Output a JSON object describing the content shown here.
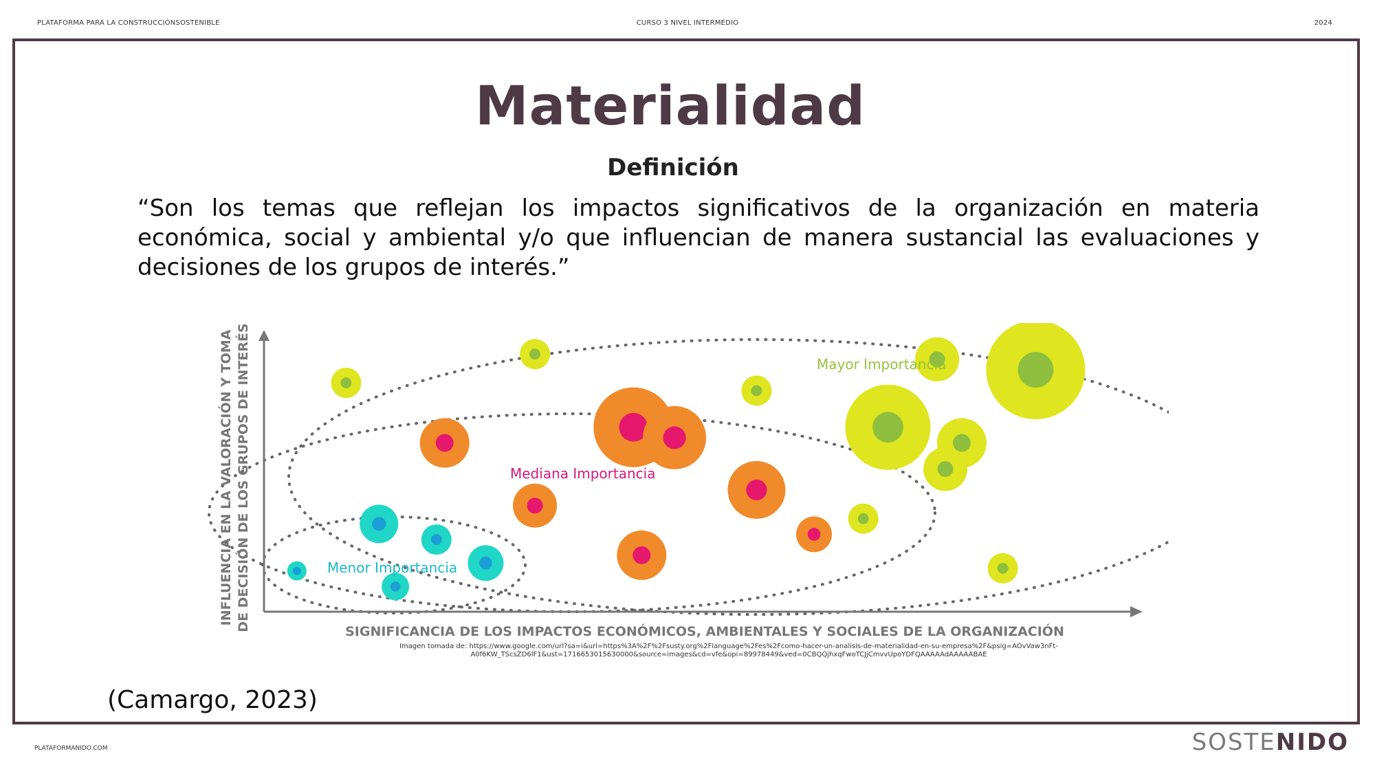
{
  "header": {
    "left": "PLATAFORMA PARA LA CONSTRUCCIÓNSOSTENIBLE",
    "center": "CURSO 3 NIVEL INTERMEDIO",
    "right": "2024"
  },
  "slide": {
    "title": "Materialidad",
    "subtitle": "Definición",
    "quote": "“Son los temas que reflejan los impactos significativos de la organización en materia económica, social y ambiental y/o que influencian de manera sustancial las evaluaciones y decisiones de los grupos de interés.”",
    "citation": "(Camargo, 2023)"
  },
  "footer": {
    "left": "PLATAFORMANIDO.COM",
    "logo_part1": "SOSTE",
    "logo_part2": "NIDO"
  },
  "colors": {
    "frame": "#4e3a45",
    "high_outer": "#dfe51e",
    "high_inner": "#8fbf3e",
    "mid_outer": "#f08a2a",
    "mid_inner": "#e6186e",
    "low_outer": "#20d6c6",
    "low_inner": "#1a9fd6",
    "high_label": "#95c23d",
    "mid_label": "#d4197a",
    "low_label": "#1bb8c8",
    "axis": "#777777"
  },
  "chart_data": {
    "type": "scatter",
    "title": "",
    "xlabel": "SIGNIFICANCIA DE LOS IMPACTOS ECONÓMICOS, AMBIENTALES Y SOCIALES DE LA ORGANIZACIÓN",
    "ylabel_line1": "INFLUENCIA EN LA VALORACIÓN Y TOMA",
    "ylabel_line2": "DE DECISIÓN DE LOS GRUPOS DE INTERÉS",
    "xlim": [
      0,
      100
    ],
    "ylim": [
      0,
      100
    ],
    "grid": false,
    "groups": [
      {
        "name": "Mayor Importancia",
        "color_key": "high",
        "points": [
          {
            "x": 9,
            "y": 85,
            "size": 1
          },
          {
            "x": 32,
            "y": 96,
            "size": 1
          },
          {
            "x": 59,
            "y": 82,
            "size": 1
          },
          {
            "x": 75,
            "y": 68,
            "size": 3
          },
          {
            "x": 81,
            "y": 94,
            "size": 1.5
          },
          {
            "x": 93,
            "y": 90,
            "size": 3.5
          },
          {
            "x": 84,
            "y": 62,
            "size": 1.7
          },
          {
            "x": 82,
            "y": 52,
            "size": 1.5
          },
          {
            "x": 72,
            "y": 33,
            "size": 1
          },
          {
            "x": 89,
            "y": 14,
            "size": 1
          }
        ]
      },
      {
        "name": "Mediana Importancia",
        "color_key": "mid",
        "points": [
          {
            "x": 21,
            "y": 62,
            "size": 1.7
          },
          {
            "x": 44,
            "y": 68,
            "size": 2.8
          },
          {
            "x": 49,
            "y": 64,
            "size": 2.2
          },
          {
            "x": 32,
            "y": 38,
            "size": 1.5
          },
          {
            "x": 59,
            "y": 44,
            "size": 2.0
          },
          {
            "x": 45,
            "y": 19,
            "size": 1.7
          },
          {
            "x": 66,
            "y": 27,
            "size": 1.2
          }
        ]
      },
      {
        "name": "Menor Importancia",
        "color_key": "low",
        "points": [
          {
            "x": 3,
            "y": 13,
            "size": 0.6
          },
          {
            "x": 13,
            "y": 31,
            "size": 1.3
          },
          {
            "x": 20,
            "y": 25,
            "size": 1.0
          },
          {
            "x": 26,
            "y": 16,
            "size": 1.2
          },
          {
            "x": 15,
            "y": 7,
            "size": 0.9
          }
        ]
      }
    ],
    "source_line1": "Imagen tomada de: https://www.google.com/url?sa=i&url=https%3A%2F%2Fsusty.org%2Flanguage%2Fes%2Fcomo-hacer-un-analisis-de-materialidad-en-su-empresa%2F&psig=AOvVaw3nFt-",
    "source_line2": "A0f6KW_TScsZD6lF1&ust=1716653015630000&source=images&cd=vfe&opi=89978449&ved=0CBQQjhxqFwoTCJjCmvvUpoYDFQAAAAAdAAAAABAE"
  }
}
